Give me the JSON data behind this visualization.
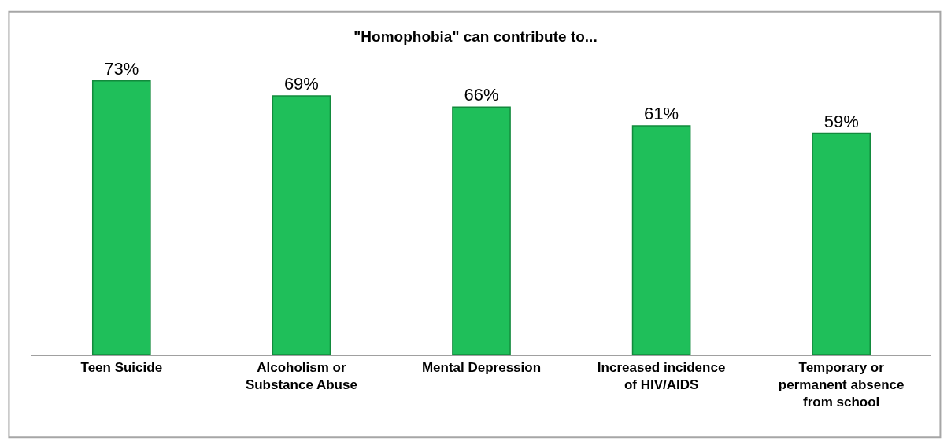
{
  "chart_data": {
    "type": "bar",
    "title": "\"Homophobia\" can contribute to...",
    "categories": [
      "Teen Suicide",
      "Alcoholism or Substance Abuse",
      "Mental Depression",
      "Increased incidence of HIV/AIDS",
      "Temporary or permanent absence from school"
    ],
    "values": [
      73,
      69,
      66,
      61,
      59
    ],
    "value_labels": [
      "73%",
      "69%",
      "66%",
      "61%",
      "59%"
    ],
    "color": "#1fbf5a",
    "tick_labels": "x"
  }
}
